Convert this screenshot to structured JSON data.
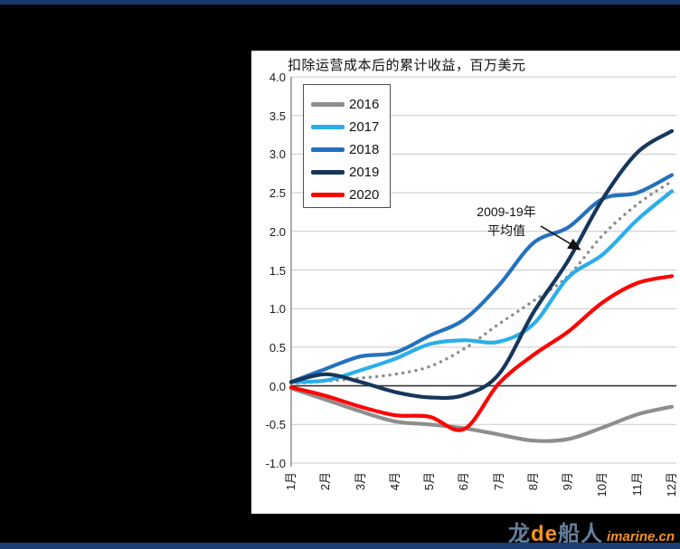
{
  "page": {
    "background": "#000000",
    "top_bar_color": "#15396E",
    "bottom_bar_color": "#1B3E73"
  },
  "chart_data": {
    "type": "line",
    "title": "扣除运营成本后的累计收益，百万美元",
    "categories": [
      "1月",
      "2月",
      "3月",
      "4月",
      "5月",
      "6月",
      "7月",
      "8月",
      "9月",
      "10月",
      "11月",
      "12月"
    ],
    "series": [
      {
        "name": "2009-19年平均值",
        "color": "#8C8C8C",
        "style": "dotted",
        "in_legend": false,
        "values": [
          0.03,
          0.06,
          0.1,
          0.15,
          0.25,
          0.48,
          0.8,
          1.1,
          1.42,
          1.95,
          2.35,
          2.65
        ]
      },
      {
        "name": "2016",
        "color": "#8E8E8E",
        "style": "solid",
        "in_legend": true,
        "values": [
          -0.03,
          -0.18,
          -0.33,
          -0.46,
          -0.5,
          -0.55,
          -0.63,
          -0.71,
          -0.69,
          -0.54,
          -0.37,
          -0.27
        ]
      },
      {
        "name": "2017",
        "color": "#2BAEE8",
        "style": "solid",
        "in_legend": true,
        "values": [
          0.05,
          0.07,
          0.2,
          0.35,
          0.54,
          0.59,
          0.57,
          0.8,
          1.4,
          1.7,
          2.15,
          2.52
        ]
      },
      {
        "name": "2018",
        "color": "#2471BE",
        "style": "solid",
        "in_legend": true,
        "values": [
          0.05,
          0.22,
          0.38,
          0.43,
          0.65,
          0.86,
          1.3,
          1.85,
          2.05,
          2.42,
          2.5,
          2.73
        ]
      },
      {
        "name": "2019",
        "color": "#16365C",
        "style": "solid",
        "in_legend": true,
        "values": [
          0.05,
          0.15,
          0.05,
          -0.08,
          -0.15,
          -0.12,
          0.15,
          0.95,
          1.62,
          2.42,
          3.02,
          3.3
        ]
      },
      {
        "name": "2020",
        "color": "#FB0505",
        "style": "solid",
        "in_legend": true,
        "values": [
          -0.02,
          -0.13,
          -0.27,
          -0.38,
          -0.4,
          -0.56,
          0.03,
          0.4,
          0.7,
          1.08,
          1.33,
          1.42
        ]
      }
    ],
    "legend_entries": [
      "2016",
      "2017",
      "2018",
      "2019",
      "2020"
    ],
    "ylim": [
      -1.0,
      4.0
    ],
    "ytick_step": 0.5,
    "yticks": [
      "4.0",
      "3.5",
      "3.0",
      "2.5",
      "2.0",
      "1.5",
      "1.0",
      "0.5",
      "0.0",
      "-0.5",
      "-1.0"
    ],
    "grid": "horizontal",
    "grid_color": "#C9C9C9",
    "zero_axis_color": "#333333",
    "axis_color": "#7F7F7F",
    "legend_position": "top-left",
    "annotation": {
      "line1": "2009-19年",
      "line2": "平均值"
    }
  },
  "watermark": {
    "part1": "龙",
    "part2": "de",
    "part3": "船人",
    "part4": "imarine.cn",
    "slate_color": "#64809E",
    "orange_color": "#F6921E"
  }
}
